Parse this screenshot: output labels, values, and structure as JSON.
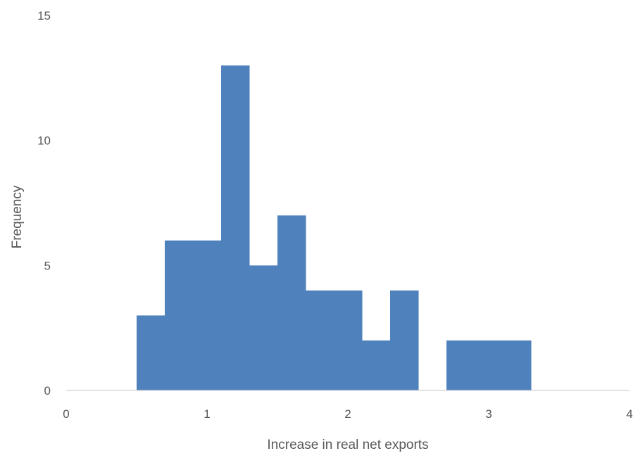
{
  "chart_data": {
    "type": "bar",
    "xlabel": "Increase in real net exports",
    "ylabel": "Frequency",
    "xlim": [
      0,
      4
    ],
    "ylim": [
      0,
      15
    ],
    "x_ticks": [
      "0",
      "1",
      "2",
      "3",
      "4"
    ],
    "y_ticks": [
      "0",
      "5",
      "10",
      "15"
    ],
    "bin_width": 0.2,
    "bins": [
      {
        "start": 0.5,
        "end": 0.7,
        "count": 3
      },
      {
        "start": 0.7,
        "end": 0.9,
        "count": 6
      },
      {
        "start": 0.9,
        "end": 1.1,
        "count": 6
      },
      {
        "start": 1.1,
        "end": 1.3,
        "count": 13
      },
      {
        "start": 1.3,
        "end": 1.5,
        "count": 5
      },
      {
        "start": 1.5,
        "end": 1.7,
        "count": 7
      },
      {
        "start": 1.7,
        "end": 1.9,
        "count": 4
      },
      {
        "start": 1.9,
        "end": 2.1,
        "count": 4
      },
      {
        "start": 2.1,
        "end": 2.3,
        "count": 2
      },
      {
        "start": 2.3,
        "end": 2.5,
        "count": 4
      },
      {
        "start": 2.5,
        "end": 2.7,
        "count": 0
      },
      {
        "start": 2.7,
        "end": 2.9,
        "count": 2
      },
      {
        "start": 2.9,
        "end": 3.1,
        "count": 2
      },
      {
        "start": 3.1,
        "end": 3.3,
        "count": 2
      }
    ],
    "bar_color": "#4f81bd",
    "axis_color": "#d9d9d9",
    "grid": false,
    "legend": "none"
  }
}
